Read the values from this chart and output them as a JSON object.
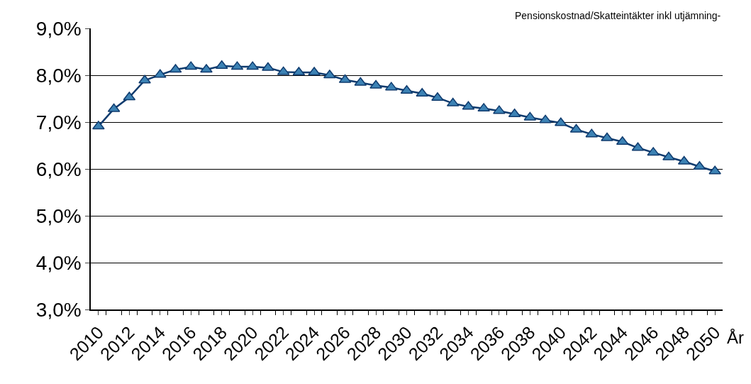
{
  "chart_data": {
    "type": "line",
    "title": "Pensionskostnad/Skatteintäkter inkl utjämning-",
    "xlabel": "År",
    "categories": [
      "2010",
      null,
      "2012",
      null,
      "2014",
      null,
      "2016",
      null,
      "2018",
      null,
      "2020",
      null,
      "2022",
      null,
      "2024",
      null,
      "2026",
      null,
      "2028",
      null,
      "2030",
      null,
      "2032",
      null,
      "2034",
      null,
      "2036",
      null,
      "2038",
      null,
      "2040",
      null,
      "2042",
      null,
      "2044",
      null,
      "2046",
      null,
      "2048",
      null,
      "2050"
    ],
    "series": [
      {
        "color": "#0f3b6e",
        "values": [
          6.91,
          7.28,
          7.53,
          7.89,
          8.01,
          8.12,
          8.18,
          8.12,
          8.2,
          8.18,
          8.18,
          8.16,
          8.07,
          8.06,
          8.06,
          8.0,
          7.9,
          7.84,
          7.78,
          7.74,
          7.67,
          7.61,
          7.52,
          7.4,
          7.33,
          7.29,
          7.24,
          7.17,
          7.1,
          7.04,
          6.98,
          6.84,
          6.74,
          6.66,
          6.58,
          6.45,
          6.35,
          6.25,
          6.16,
          6.05,
          5.95
        ]
      }
    ],
    "ylim": [
      3,
      9
    ],
    "yticks": [
      {
        "value": 3,
        "label": "3,0%"
      },
      {
        "value": 4,
        "label": "4,0%"
      },
      {
        "value": 5,
        "label": "5,0%"
      },
      {
        "value": 6,
        "label": "6,0%"
      },
      {
        "value": 7,
        "label": "7,0%"
      },
      {
        "value": 8,
        "label": "8,0%"
      },
      {
        "value": 9,
        "label": "9,0%"
      }
    ],
    "grid": "y",
    "marker": "triangle",
    "line_style": "solid"
  }
}
